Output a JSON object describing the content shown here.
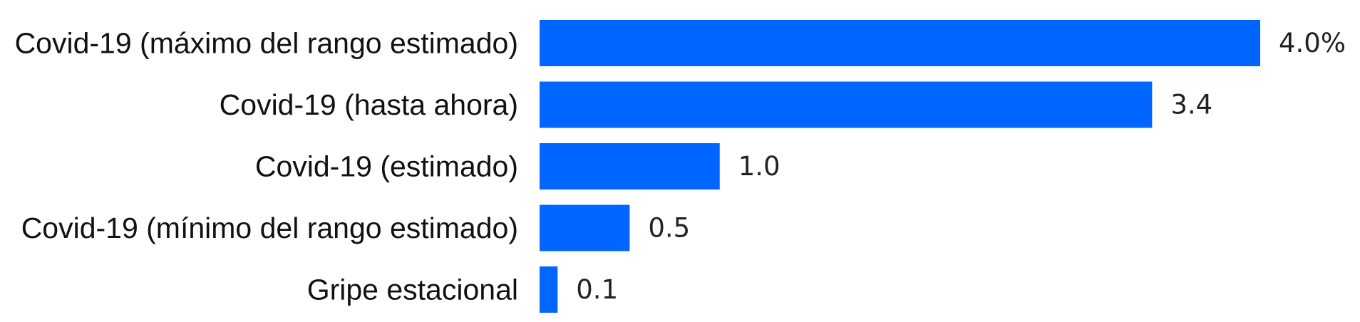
{
  "chart_data": {
    "type": "bar",
    "orientation": "horizontal",
    "title": "",
    "xlabel": "",
    "ylabel": "",
    "categories": [
      "Covid-19 (máximo del rango estimado)",
      "Covid-19 (hasta ahora)",
      "Covid-19 (estimado)",
      "Covid-19 (mínimo del rango estimado)",
      "Gripe estacional"
    ],
    "values": [
      4.0,
      3.4,
      1.0,
      0.5,
      0.1
    ],
    "value_labels": [
      "4.0%",
      "3.4",
      "1.0",
      "0.5",
      "0.1"
    ],
    "unit": "%",
    "xlim": [
      0,
      4.0
    ],
    "grid": false,
    "legend": "none",
    "bar_color": "#0066ff"
  }
}
